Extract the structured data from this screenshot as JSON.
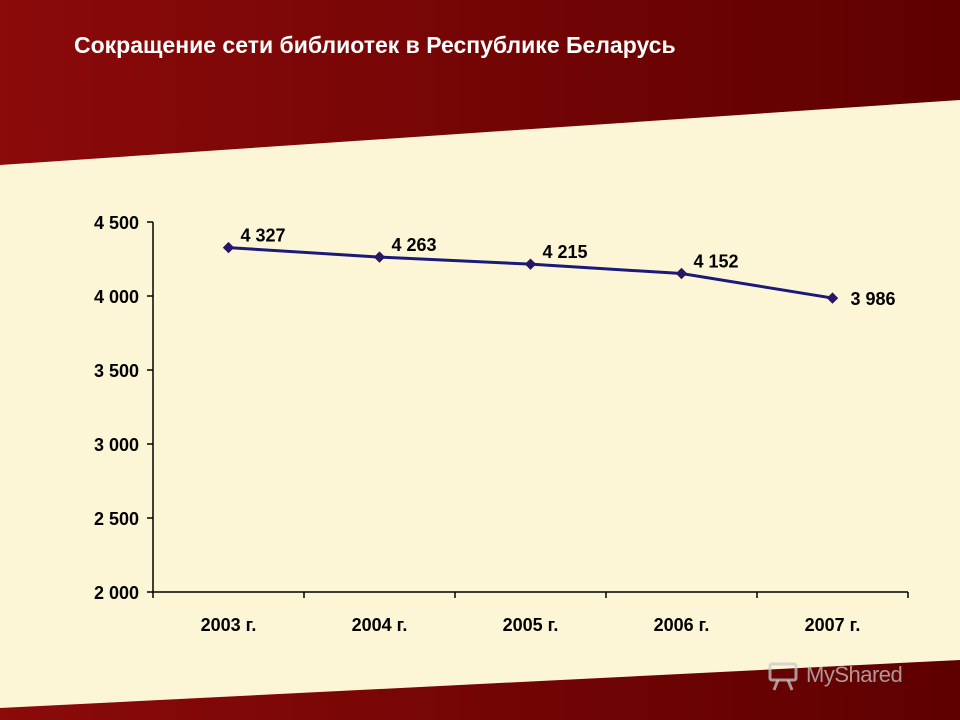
{
  "slide": {
    "title": "Сокращение сети библиотек в Республике Беларусь"
  },
  "colors": {
    "background_dark": "#6e0000",
    "background_mid": "#8b0a0a",
    "plot_area": "#fdf6d6",
    "line": "#1a1a7a",
    "marker": "#2a1466",
    "axis": "#000000"
  },
  "chart_data": {
    "type": "line",
    "title": "",
    "xlabel": "",
    "ylabel": "",
    "categories": [
      "2003 г.",
      "2004 г.",
      "2005 г.",
      "2006 г.",
      "2007 г."
    ],
    "series": [
      {
        "values": [
          4327,
          4263,
          4215,
          4152,
          3986
        ],
        "labels": [
          "4 327",
          "4 263",
          "4 215",
          "4 152",
          "3 986"
        ]
      }
    ],
    "ylim": [
      2000,
      4500
    ],
    "yticks": [
      2000,
      2500,
      3000,
      3500,
      4000,
      4500
    ],
    "ytick_labels": [
      "2 000",
      "2 500",
      "3 000",
      "3 500",
      "4 000",
      "4 500"
    ],
    "grid": false,
    "legend": "none"
  },
  "watermark": {
    "text": "MyShared",
    "icon": "projector-icon"
  }
}
